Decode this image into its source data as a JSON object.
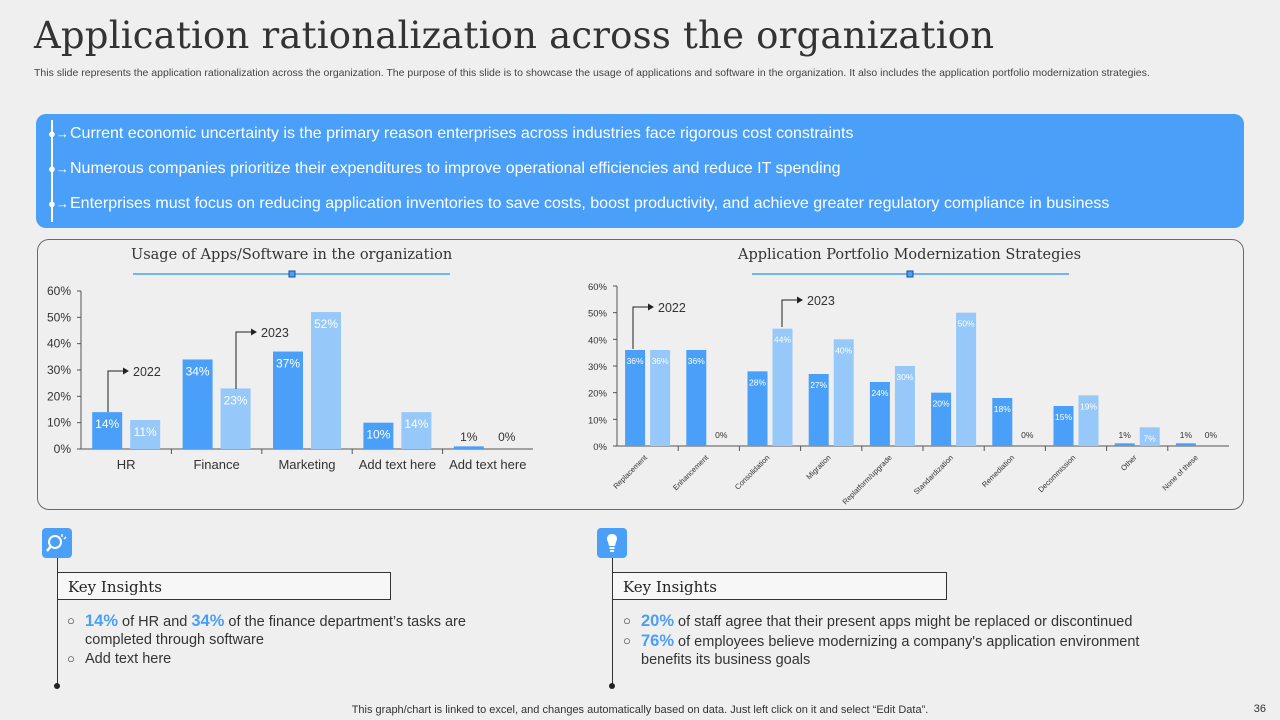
{
  "title": "Application rationalization across the organization",
  "subtitle": "This slide represents the application rationalization across the organization. The purpose of this slide is to showcase the usage of applications and software in the organization. It also includes the application portfolio modernization strategies.",
  "banner": {
    "bullets": [
      "Current economic uncertainty  is the primary reason enterprises across industries face rigorous cost constraints",
      "Numerous companies prioritize their expenditures to improve operational efficiencies and reduce IT spending",
      "Enterprises must focus on reducing application inventories to save costs, boost productivity,  and achieve greater regulatory  compliance in business"
    ]
  },
  "chart_data": [
    {
      "type": "bar",
      "title": "Usage of Apps/Software  in the organization",
      "categories": [
        "HR",
        "Finance",
        "Marketing",
        "Add text here",
        "Add text here"
      ],
      "series": [
        {
          "name": "2022",
          "values": [
            14,
            34,
            37,
            10,
            1
          ],
          "labels": [
            "14%",
            "34%",
            "37%",
            "10%",
            "1%"
          ]
        },
        {
          "name": "2023",
          "values": [
            11,
            23,
            52,
            14,
            0
          ],
          "labels": [
            "11%",
            "23%",
            "52%",
            "14%",
            "0%"
          ]
        }
      ],
      "y_ticks": [
        "0%",
        "10%",
        "20%",
        "30%",
        "40%",
        "50%",
        "60%"
      ],
      "ylim": [
        0,
        60
      ],
      "colors": {
        "2022": "#4a9ff8",
        "2023": "#96c8fa"
      }
    },
    {
      "type": "bar",
      "title": "Application Portfolio Modernization Strategies",
      "categories": [
        "Replacement",
        "Enhancement",
        "Consolidation",
        "Migration",
        "Replatform/upgrade",
        "Standardization",
        "Remediation",
        "Decommission",
        "Other",
        "None of these"
      ],
      "series": [
        {
          "name": "2022",
          "values": [
            36,
            36,
            28,
            27,
            24,
            20,
            18,
            15,
            1,
            1
          ],
          "labels": [
            "36%",
            "36%",
            "28%",
            "27%",
            "24%",
            "20%",
            "18%",
            "15%",
            "1%",
            "1%"
          ]
        },
        {
          "name": "2023",
          "values": [
            36,
            0,
            44,
            40,
            30,
            50,
            0,
            19,
            7,
            0
          ],
          "labels": [
            "36%",
            "0%",
            "44%",
            "40%",
            "30%",
            "50%",
            "0%",
            "19%",
            "7%",
            "0%"
          ]
        }
      ],
      "y_ticks": [
        "0%",
        "10%",
        "20%",
        "30%",
        "40%",
        "50%",
        "60%"
      ],
      "ylim": [
        0,
        60
      ],
      "colors": {
        "2022": "#4a9ff8",
        "2023": "#96c8fa"
      }
    }
  ],
  "insights_left": {
    "heading": "Key Insights",
    "items": [
      {
        "hl1": "14%",
        "t1": " of HR and ",
        "hl2": "34%",
        "t2": " of the finance department’s tasks are completed through software"
      },
      {
        "text": "Add text here"
      }
    ]
  },
  "insights_right": {
    "heading": "Key Insights",
    "items": [
      {
        "hl": "20%",
        "text": " of staff agree that their present apps might be replaced or discontinued"
      },
      {
        "hl": "76%",
        "text": " of employees believe modernizing a company's application environment benefits its business goals"
      }
    ]
  },
  "footer": "This graph/chart is linked to excel,  and changes automatically based on data. Just left click on it and select “Edit Data”.",
  "page_number": "36"
}
